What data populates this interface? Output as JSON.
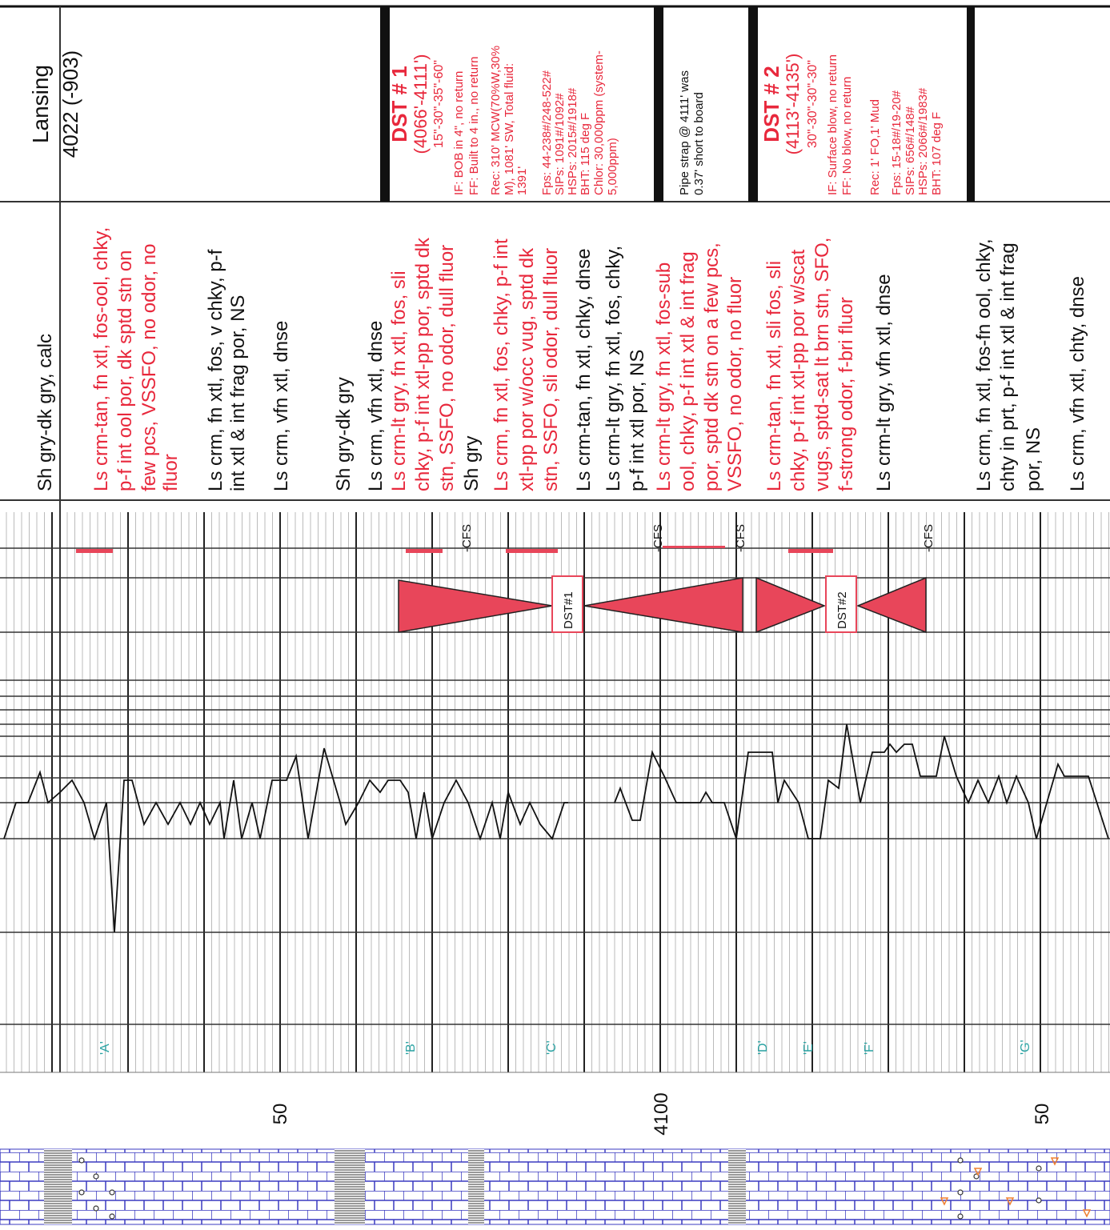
{
  "header": {
    "formation": "Lansing",
    "top": "4022 (-903)"
  },
  "dst_boxes": [
    {
      "lines": [
        "DST # 1",
        "(4066'-4111')",
        "15\"-30\"-35\"-60\"",
        "IF: BOB in 4\", no return",
        "FF: Built to 4 in., no return",
        "Rec: 310' MCW(70%W,30%",
        "M), 1081' SW, Total fluid:",
        "1391'",
        "Fps: 44-238#/248-522#",
        "SIPs: 1091#/1092#",
        "HSPs: 2015#/1918#",
        "BHT: 115 deg F",
        "Chlor: 30,000ppm (system-",
        "5,000ppm)"
      ]
    },
    {
      "lines": [
        "Pipe strap @ 4111' was",
        "0.37' short to board"
      ]
    },
    {
      "lines": [
        "DST # 2",
        "(4113'-4135')",
        "30\"-30\"-30\"-30\"",
        "IF: Surface blow, no return",
        "FF: No blow, no return",
        "Rec: 1' FO,1' Mud",
        "Fps: 15-18#/19-20#",
        "SIPs: 656#/148#",
        "HSPs: 2066#/1983#",
        "BHT: 107 deg F"
      ]
    }
  ],
  "descriptions": [
    {
      "color": "black",
      "lines": [
        "Sh gry-dk gry, calc"
      ]
    },
    {
      "color": "red",
      "lines": [
        "Ls crm-tan, fn xtl, fos-ool, chky,",
        "p-f int ool por, dk sptd stn on",
        "few pcs, VSSFO, no odor, no",
        "fluor"
      ]
    },
    {
      "color": "black",
      "lines": [
        "Ls crm, fn xtl, fos, v chky, p-f",
        "int xtl & int frag por, NS"
      ]
    },
    {
      "color": "black",
      "lines": [
        "Ls crm, vfn xtl, dnse"
      ]
    },
    {
      "color": "black",
      "lines": [
        "Sh gry-dk gry"
      ]
    },
    {
      "color": "black",
      "lines": [
        "Ls crm, vfn xtl, dnse"
      ]
    },
    {
      "color": "red",
      "lines": [
        "Ls crm-lt gry, fn xtl, fos, sli",
        "chky, p-f int xtl-pp por, sptd dk",
        "stn, SSFO, no odor, dull fluor"
      ]
    },
    {
      "color": "black",
      "lines": [
        "Sh gry"
      ]
    },
    {
      "color": "red",
      "lines": [
        "Ls crm, fn xtl, fos, chky, p-f int",
        "xtl-pp por w/occ vug, sptd dk",
        "stn, SSFO, sli odor, dull fluor"
      ]
    },
    {
      "color": "black",
      "lines": [
        "Ls crm-tan, fn xtl, chky, dnse"
      ]
    },
    {
      "color": "black",
      "lines": [
        "Ls crm-lt gry, fn xtl, fos, chky,",
        "p-f int xtl por, NS"
      ]
    },
    {
      "color": "red",
      "lines": [
        "Ls crm-lt gry, fn xtl, fos-sub",
        "ool, chky, p-f int xtl & int frag",
        "por, sptd dk stn on a few pcs,",
        "VSSFO, no odor, no fluor"
      ]
    },
    {
      "color": "red",
      "lines": [
        "Ls crm-tan, fn xtl, sli fos, sli",
        "chky, p-f int xtl-pp por w/scat",
        "vugs, sptd-sat lt brn stn, SFO,",
        "f-strong odor, f-bri fluor"
      ]
    },
    {
      "color": "black",
      "lines": [
        "Ls crm-lt gry, vfn xtl, dnse"
      ]
    },
    {
      "color": "black",
      "lines": [
        "Ls crm, fn xtl, fos-fn ool, chky,",
        "chty in prt, p-f int xtl & int frag",
        "por, NS"
      ]
    },
    {
      "color": "black",
      "lines": [
        "Ls crm, vfn xtl, chty, dnse"
      ]
    }
  ],
  "log": {
    "cfs_labels": [
      "-CFS",
      "-CFS",
      "-CFS",
      "-CFS"
    ],
    "dst_tags": [
      "DST#1",
      "DST#2"
    ],
    "markers": [
      "'A'",
      "'B'",
      "'C'",
      "'D'",
      "'E'",
      "'F'",
      "'G'"
    ],
    "depth_labels": [
      "50",
      "4100",
      "50"
    ]
  }
}
